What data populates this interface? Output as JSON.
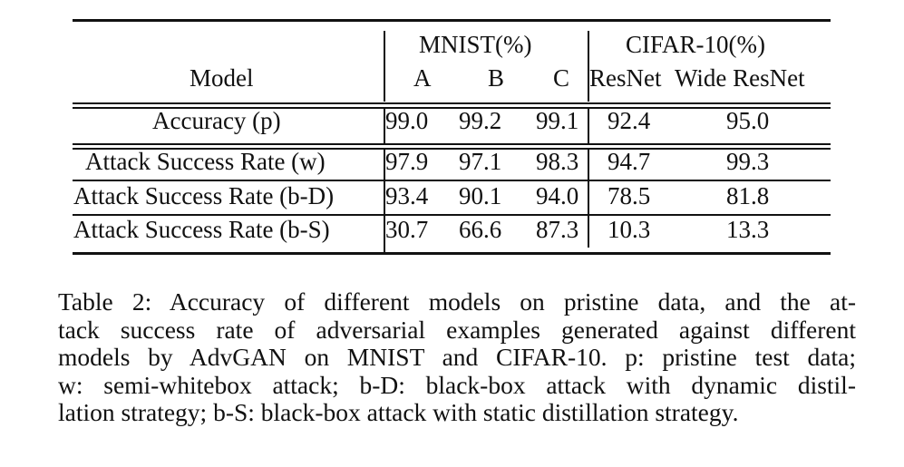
{
  "table": {
    "group_headers": {
      "mnist": "MNIST(%)",
      "cifar": "CIFAR-10(%)"
    },
    "columns": {
      "model": "Model",
      "a": "A",
      "b": "B",
      "c": "C",
      "resnet": "ResNet",
      "wide_resnet": "Wide ResNet"
    },
    "rows": [
      {
        "label": "Accuracy (p)",
        "a": "99.0",
        "b": "99.2",
        "c": "99.1",
        "resnet": "92.4",
        "wide_resnet": "95.0"
      },
      {
        "label": "Attack Success Rate (w)",
        "a": "97.9",
        "b": "97.1",
        "c": "98.3",
        "resnet": "94.7",
        "wide_resnet": "99.3"
      },
      {
        "label": "Attack Success Rate (b-D)",
        "a": "93.4",
        "b": "90.1",
        "c": "94.0",
        "resnet": "78.5",
        "wide_resnet": "81.8"
      },
      {
        "label": "Attack Success Rate (b-S)",
        "a": "30.7",
        "b": "66.6",
        "c": "87.3",
        "resnet": "10.3",
        "wide_resnet": "13.3"
      }
    ]
  },
  "caption": {
    "lines": [
      "Table 2: Accuracy of different models on pristine data, and the at-",
      "tack success rate of adversarial examples generated against different",
      "models by AdvGAN on MNIST and CIFAR-10. p: pristine test data;",
      "w: semi-whitebox attack; b-D: black-box attack with dynamic distil-",
      "lation strategy; b-S: black-box attack with static distillation strategy."
    ]
  }
}
